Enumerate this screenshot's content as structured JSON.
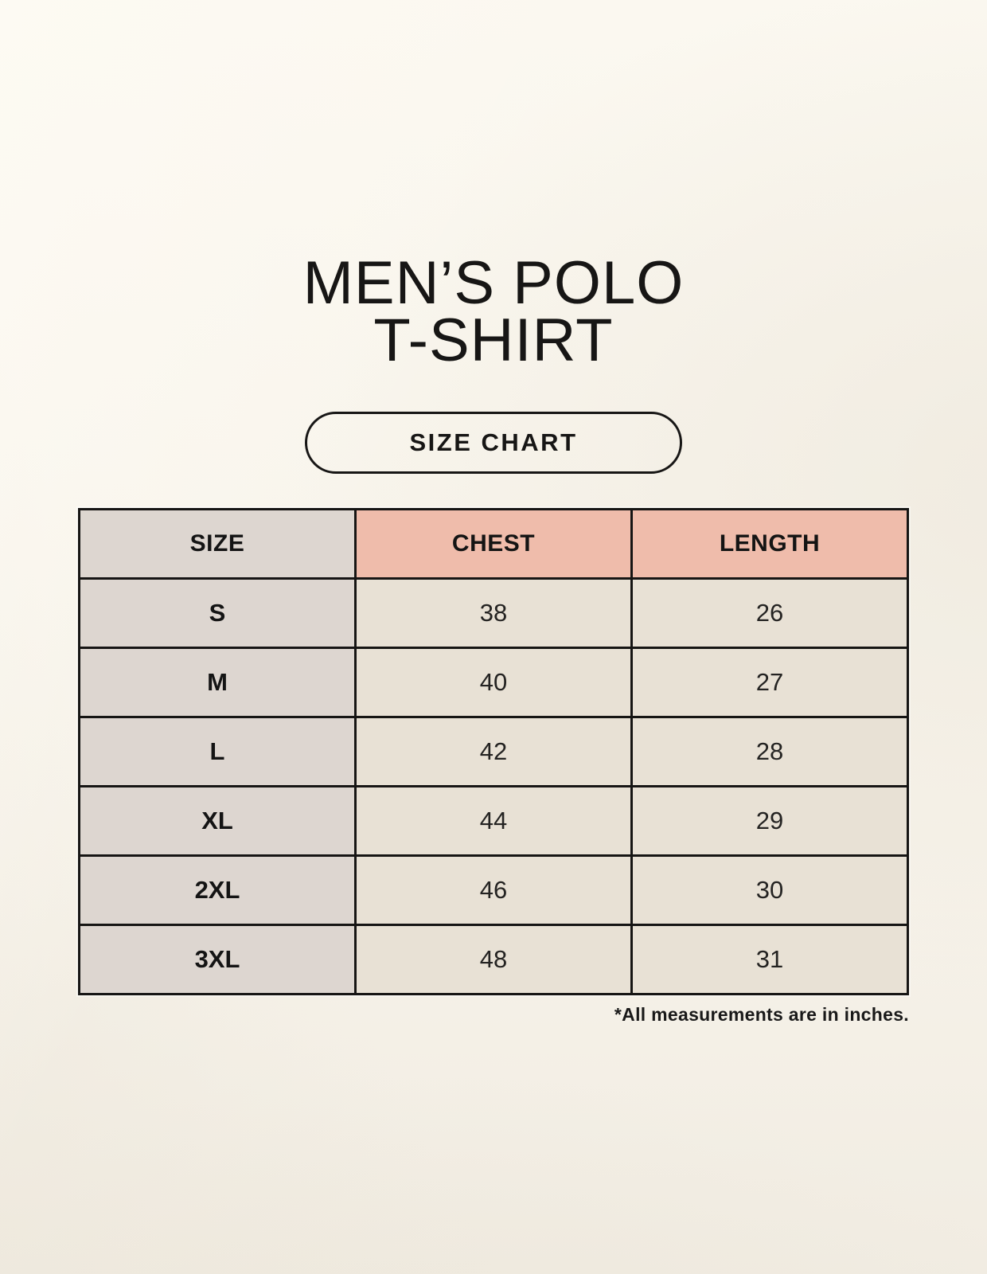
{
  "header": {
    "title_line1": "MEN’S POLO",
    "title_line2": "T-SHIRT",
    "badge_label": "SIZE CHART"
  },
  "chart_data": {
    "type": "table",
    "title": "MEN’S POLO T-SHIRT",
    "columns": [
      "SIZE",
      "CHEST",
      "LENGTH"
    ],
    "rows": [
      {
        "size": "S",
        "chest": 38,
        "length": 26
      },
      {
        "size": "M",
        "chest": 40,
        "length": 27
      },
      {
        "size": "L",
        "chest": 42,
        "length": 28
      },
      {
        "size": "XL",
        "chest": 44,
        "length": 29
      },
      {
        "size": "2XL",
        "chest": 46,
        "length": 30
      },
      {
        "size": "3XL",
        "chest": 48,
        "length": 31
      }
    ],
    "units": "inches",
    "footnote": "*All measurements are in inches."
  },
  "colors": {
    "page_background": "#f7f3ea",
    "table_border": "#161514",
    "accent_header": "#efbcab",
    "size_column": "#ddd6d0",
    "value_cell": "#e8e1d5",
    "text": "#171615"
  }
}
